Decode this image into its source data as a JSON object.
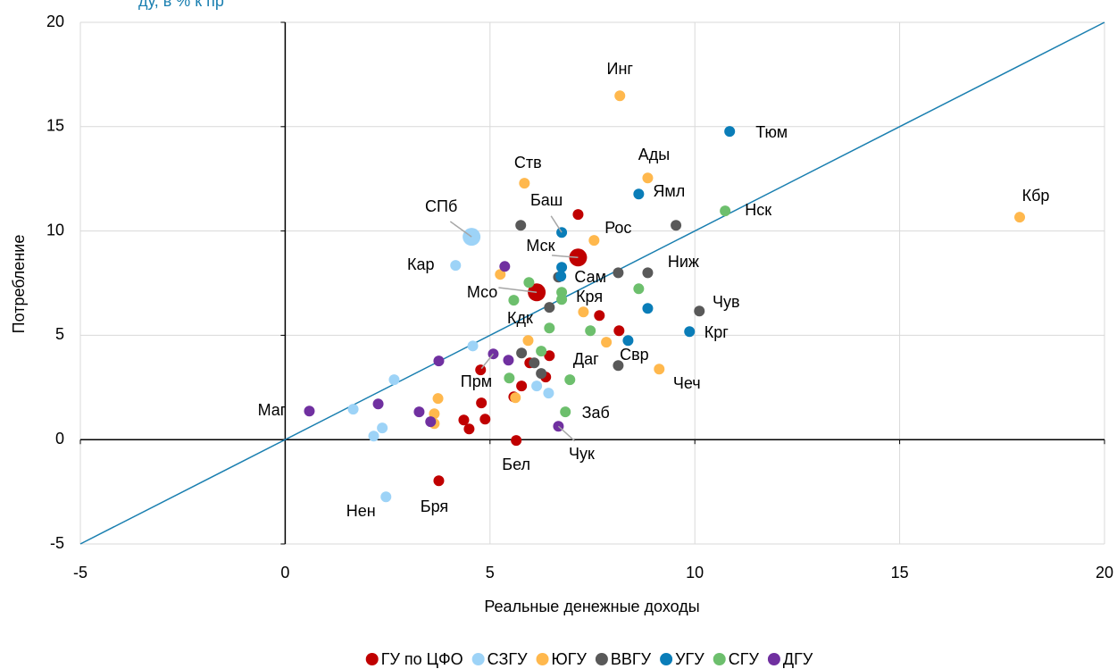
{
  "chart_data": {
    "type": "scatter",
    "subtitle": "ду, в % к пр",
    "xlabel": "Реальные денежные доходы",
    "ylabel": "Потребление",
    "xlim": [
      -5,
      20
    ],
    "ylim": [
      -5,
      20
    ],
    "xticks": [
      -5,
      0,
      5,
      10,
      15,
      20
    ],
    "yticks": [
      -5,
      0,
      5,
      10,
      15,
      20
    ],
    "grid": true,
    "identity_line": true,
    "identity_color": "#1a7fb0",
    "legend": "bottom",
    "series": [
      {
        "name": "ГУ по ЦФО",
        "color": "#c00000",
        "x": [
          7.15,
          6.14,
          7.15,
          7.67,
          8.15,
          6.45,
          5.97,
          6.36,
          5.77,
          5.58,
          4.77,
          4.79,
          4.36,
          4.49,
          4.88,
          5.64,
          3.75
        ],
        "y": [
          8.73,
          7.06,
          10.79,
          5.95,
          5.22,
          4.02,
          3.68,
          3.0,
          2.57,
          2.05,
          3.34,
          1.76,
          0.94,
          0.51,
          0.98,
          -0.04,
          -1.97
        ],
        "sizes": [
          10,
          10,
          6,
          6,
          6,
          6,
          6,
          6,
          6,
          6,
          6,
          6,
          6,
          6,
          6,
          6,
          6
        ],
        "labels": [
          "Мск",
          "Мсо",
          null,
          null,
          null,
          "Даг",
          null,
          null,
          null,
          null,
          null,
          null,
          null,
          null,
          null,
          "Бел",
          "Бря"
        ]
      },
      {
        "name": "СЗГУ",
        "color": "#9dd3f7",
        "x": [
          4.55,
          4.16,
          4.58,
          2.66,
          1.66,
          2.37,
          2.16,
          2.46,
          6.14,
          6.43
        ],
        "y": [
          9.72,
          8.35,
          4.49,
          2.87,
          1.46,
          0.56,
          0.17,
          -2.74,
          2.57,
          2.23
        ],
        "sizes": [
          10,
          6,
          6,
          6,
          6,
          6,
          6,
          6,
          6,
          6
        ],
        "labels": [
          "СПб",
          "Кар",
          null,
          null,
          null,
          null,
          null,
          "Нен",
          null,
          null
        ]
      },
      {
        "name": "ЮГУ",
        "color": "#ffb84d",
        "x": [
          8.17,
          5.84,
          8.85,
          17.93,
          7.54,
          5.25,
          7.28,
          5.93,
          7.84,
          9.13,
          3.73,
          5.62,
          3.64,
          3.64
        ],
        "y": [
          16.48,
          12.29,
          12.54,
          10.66,
          9.55,
          7.92,
          6.12,
          4.75,
          4.67,
          3.38,
          1.97,
          2.01,
          1.24,
          0.77
        ],
        "sizes": [
          6,
          6,
          6,
          6,
          6,
          6,
          6,
          6,
          6,
          6,
          6,
          6,
          6,
          6
        ],
        "labels": [
          "Инг",
          "Ств",
          "Ады",
          "Кбр",
          "Рос",
          null,
          null,
          null,
          null,
          "Чеч",
          null,
          null,
          null,
          null
        ]
      },
      {
        "name": "ВВГУ",
        "color": "#595959",
        "x": [
          5.75,
          9.54,
          8.13,
          8.85,
          6.67,
          6.45,
          10.11,
          5.77,
          6.08,
          6.25,
          8.13
        ],
        "y": [
          10.27,
          10.27,
          8.0,
          8.0,
          7.79,
          6.34,
          6.16,
          4.15,
          3.68,
          3.17,
          3.55
        ],
        "sizes": [
          6,
          6,
          6,
          6,
          6,
          6,
          6,
          6,
          6,
          6,
          6
        ],
        "labels": [
          null,
          null,
          null,
          "Ниж",
          null,
          null,
          "Чув",
          null,
          null,
          null,
          null
        ]
      },
      {
        "name": "УГУ",
        "color": "#0a7db8",
        "x": [
          10.85,
          8.63,
          6.75,
          6.75,
          6.73,
          8.85,
          9.87,
          8.37
        ],
        "y": [
          14.77,
          11.77,
          9.93,
          8.26,
          7.83,
          6.29,
          5.18,
          4.75
        ],
        "sizes": [
          6,
          6,
          6,
          6,
          6,
          6,
          6,
          6
        ],
        "labels": [
          "Тюм",
          "Ямл",
          "Баш",
          null,
          "Сам",
          null,
          "Крг",
          "Свр"
        ]
      },
      {
        "name": "СГУ",
        "color": "#6dbf6d",
        "x": [
          10.74,
          5.95,
          5.58,
          6.75,
          6.75,
          8.63,
          6.45,
          7.45,
          6.25,
          5.47,
          6.95,
          6.84
        ],
        "y": [
          10.96,
          7.53,
          6.68,
          7.06,
          6.72,
          7.23,
          5.35,
          5.22,
          4.24,
          2.95,
          2.87,
          1.33
        ],
        "sizes": [
          6,
          6,
          6,
          6,
          6,
          6,
          6,
          6,
          6,
          6,
          6,
          6
        ],
        "labels": [
          "Нск",
          null,
          "Кдк",
          null,
          "Кря",
          null,
          null,
          null,
          null,
          null,
          null,
          "Заб"
        ]
      },
      {
        "name": "ДГУ",
        "color": "#7030a0",
        "x": [
          5.36,
          5.08,
          5.45,
          3.75,
          2.27,
          0.59,
          3.27,
          3.55,
          6.67
        ],
        "y": [
          8.3,
          4.11,
          3.81,
          3.77,
          1.71,
          1.37,
          1.33,
          0.86,
          0.64
        ],
        "sizes": [
          6,
          6,
          6,
          6,
          6,
          6,
          6,
          6,
          6
        ],
        "labels": [
          null,
          "Прм",
          null,
          null,
          null,
          "Маг",
          null,
          null,
          "Чук"
        ]
      }
    ]
  }
}
